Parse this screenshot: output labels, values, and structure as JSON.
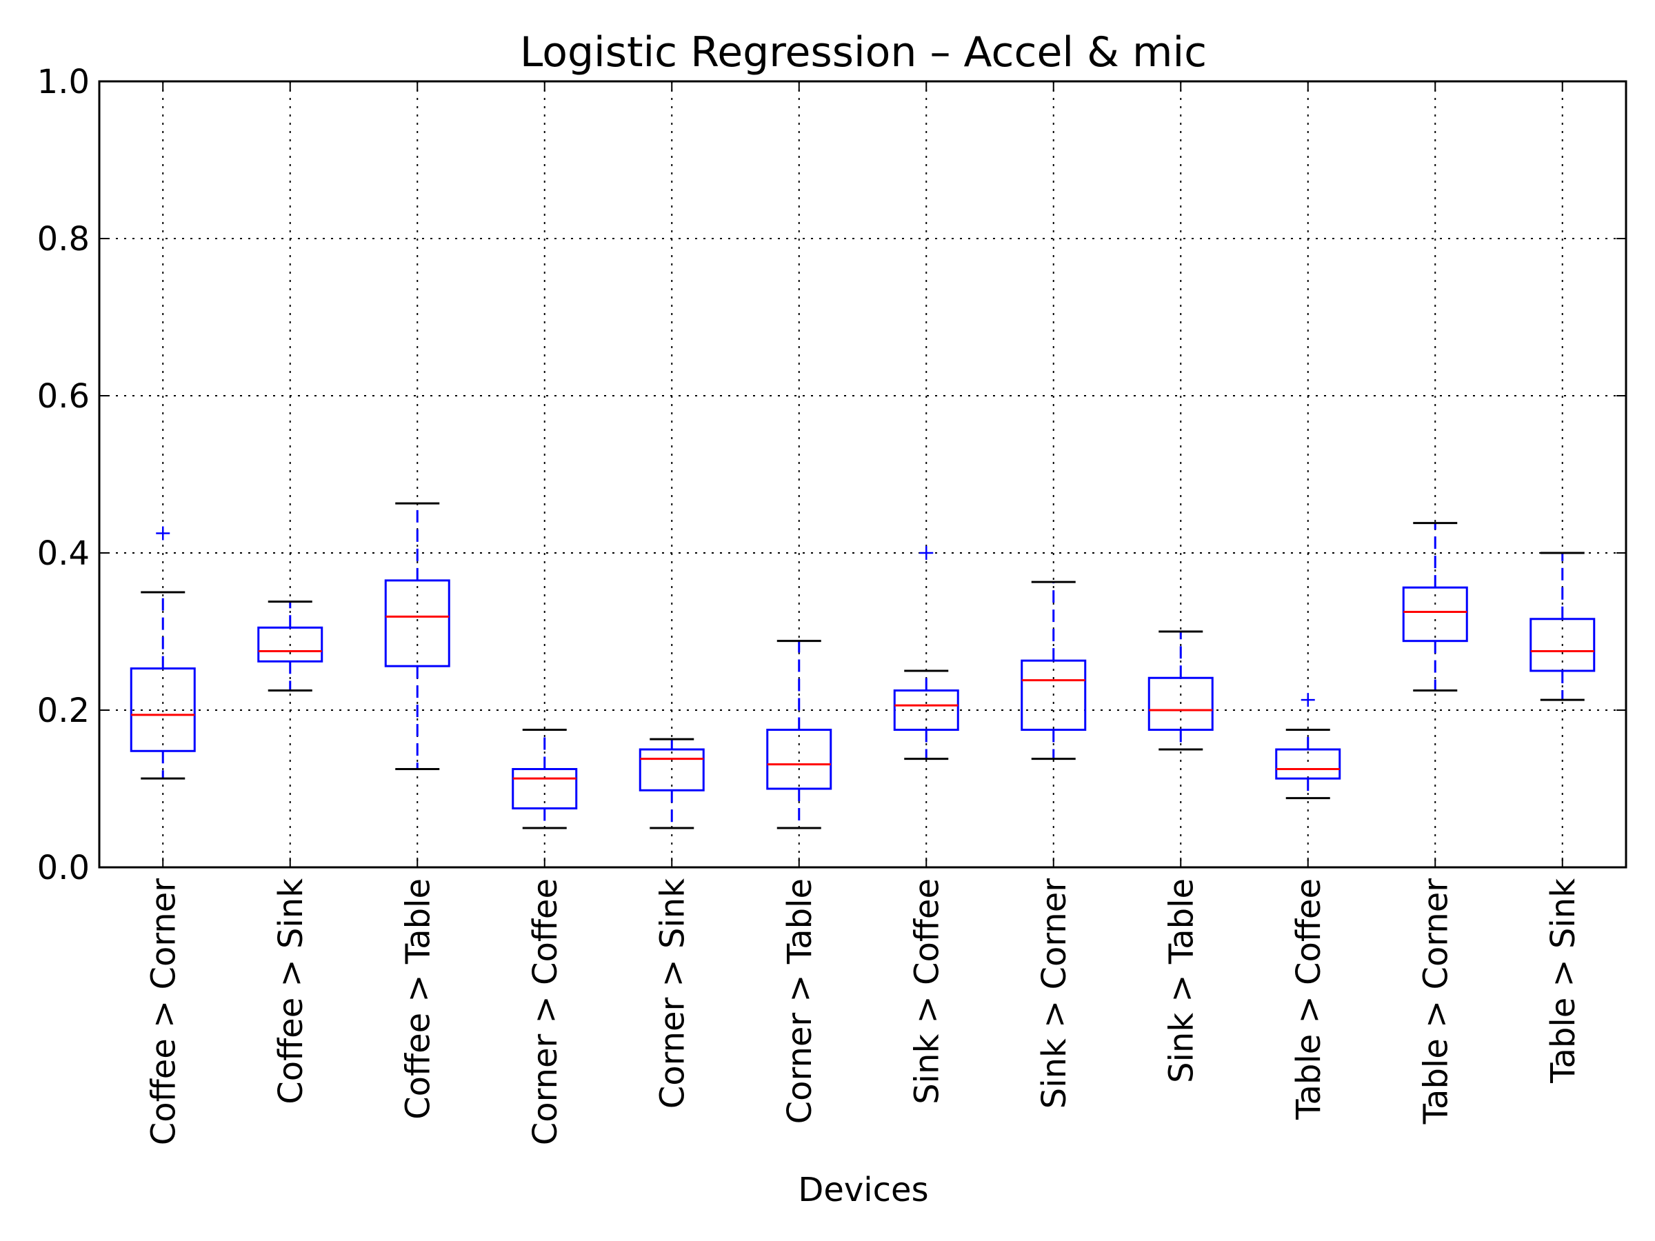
{
  "chart_data": {
    "type": "boxplot",
    "title": "Logistic Regression – Accel & mic",
    "xlabel": "Devices",
    "ylabel": "",
    "ylim": [
      0.0,
      1.0
    ],
    "yticks": [
      "0.0",
      "0.2",
      "0.4",
      "0.6",
      "0.8",
      "1.0"
    ],
    "grid": true,
    "categories": [
      "Coffee > Corner",
      "Coffee > Sink",
      "Coffee > Table",
      "Corner > Coffee",
      "Corner > Sink",
      "Corner > Table",
      "Sink > Coffee",
      "Sink > Corner",
      "Sink > Table",
      "Table > Coffee",
      "Table > Corner",
      "Table > Sink"
    ],
    "boxes": [
      {
        "whisker_low": 0.113,
        "q1": 0.148,
        "median": 0.194,
        "q3": 0.253,
        "whisker_high": 0.35,
        "outliers": [
          0.425
        ]
      },
      {
        "whisker_low": 0.225,
        "q1": 0.262,
        "median": 0.275,
        "q3": 0.305,
        "whisker_high": 0.338,
        "outliers": []
      },
      {
        "whisker_low": 0.125,
        "q1": 0.256,
        "median": 0.319,
        "q3": 0.365,
        "whisker_high": 0.463,
        "outliers": []
      },
      {
        "whisker_low": 0.05,
        "q1": 0.075,
        "median": 0.113,
        "q3": 0.125,
        "whisker_high": 0.175,
        "outliers": []
      },
      {
        "whisker_low": 0.05,
        "q1": 0.098,
        "median": 0.138,
        "q3": 0.15,
        "whisker_high": 0.163,
        "outliers": []
      },
      {
        "whisker_low": 0.05,
        "q1": 0.1,
        "median": 0.131,
        "q3": 0.175,
        "whisker_high": 0.288,
        "outliers": []
      },
      {
        "whisker_low": 0.138,
        "q1": 0.175,
        "median": 0.206,
        "q3": 0.225,
        "whisker_high": 0.25,
        "outliers": [
          0.4
        ]
      },
      {
        "whisker_low": 0.138,
        "q1": 0.175,
        "median": 0.238,
        "q3": 0.263,
        "whisker_high": 0.363,
        "outliers": []
      },
      {
        "whisker_low": 0.15,
        "q1": 0.175,
        "median": 0.2,
        "q3": 0.241,
        "whisker_high": 0.3,
        "outliers": []
      },
      {
        "whisker_low": 0.088,
        "q1": 0.113,
        "median": 0.125,
        "q3": 0.15,
        "whisker_high": 0.175,
        "outliers": [
          0.213
        ]
      },
      {
        "whisker_low": 0.225,
        "q1": 0.288,
        "median": 0.325,
        "q3": 0.356,
        "whisker_high": 0.438,
        "outliers": []
      },
      {
        "whisker_low": 0.213,
        "q1": 0.25,
        "median": 0.275,
        "q3": 0.316,
        "whisker_high": 0.4,
        "outliers": []
      }
    ],
    "colors": {
      "box": "#0000ff",
      "median": "#ff0000",
      "cap": "#000000",
      "grid": "#000000",
      "axes": "#000000"
    }
  }
}
